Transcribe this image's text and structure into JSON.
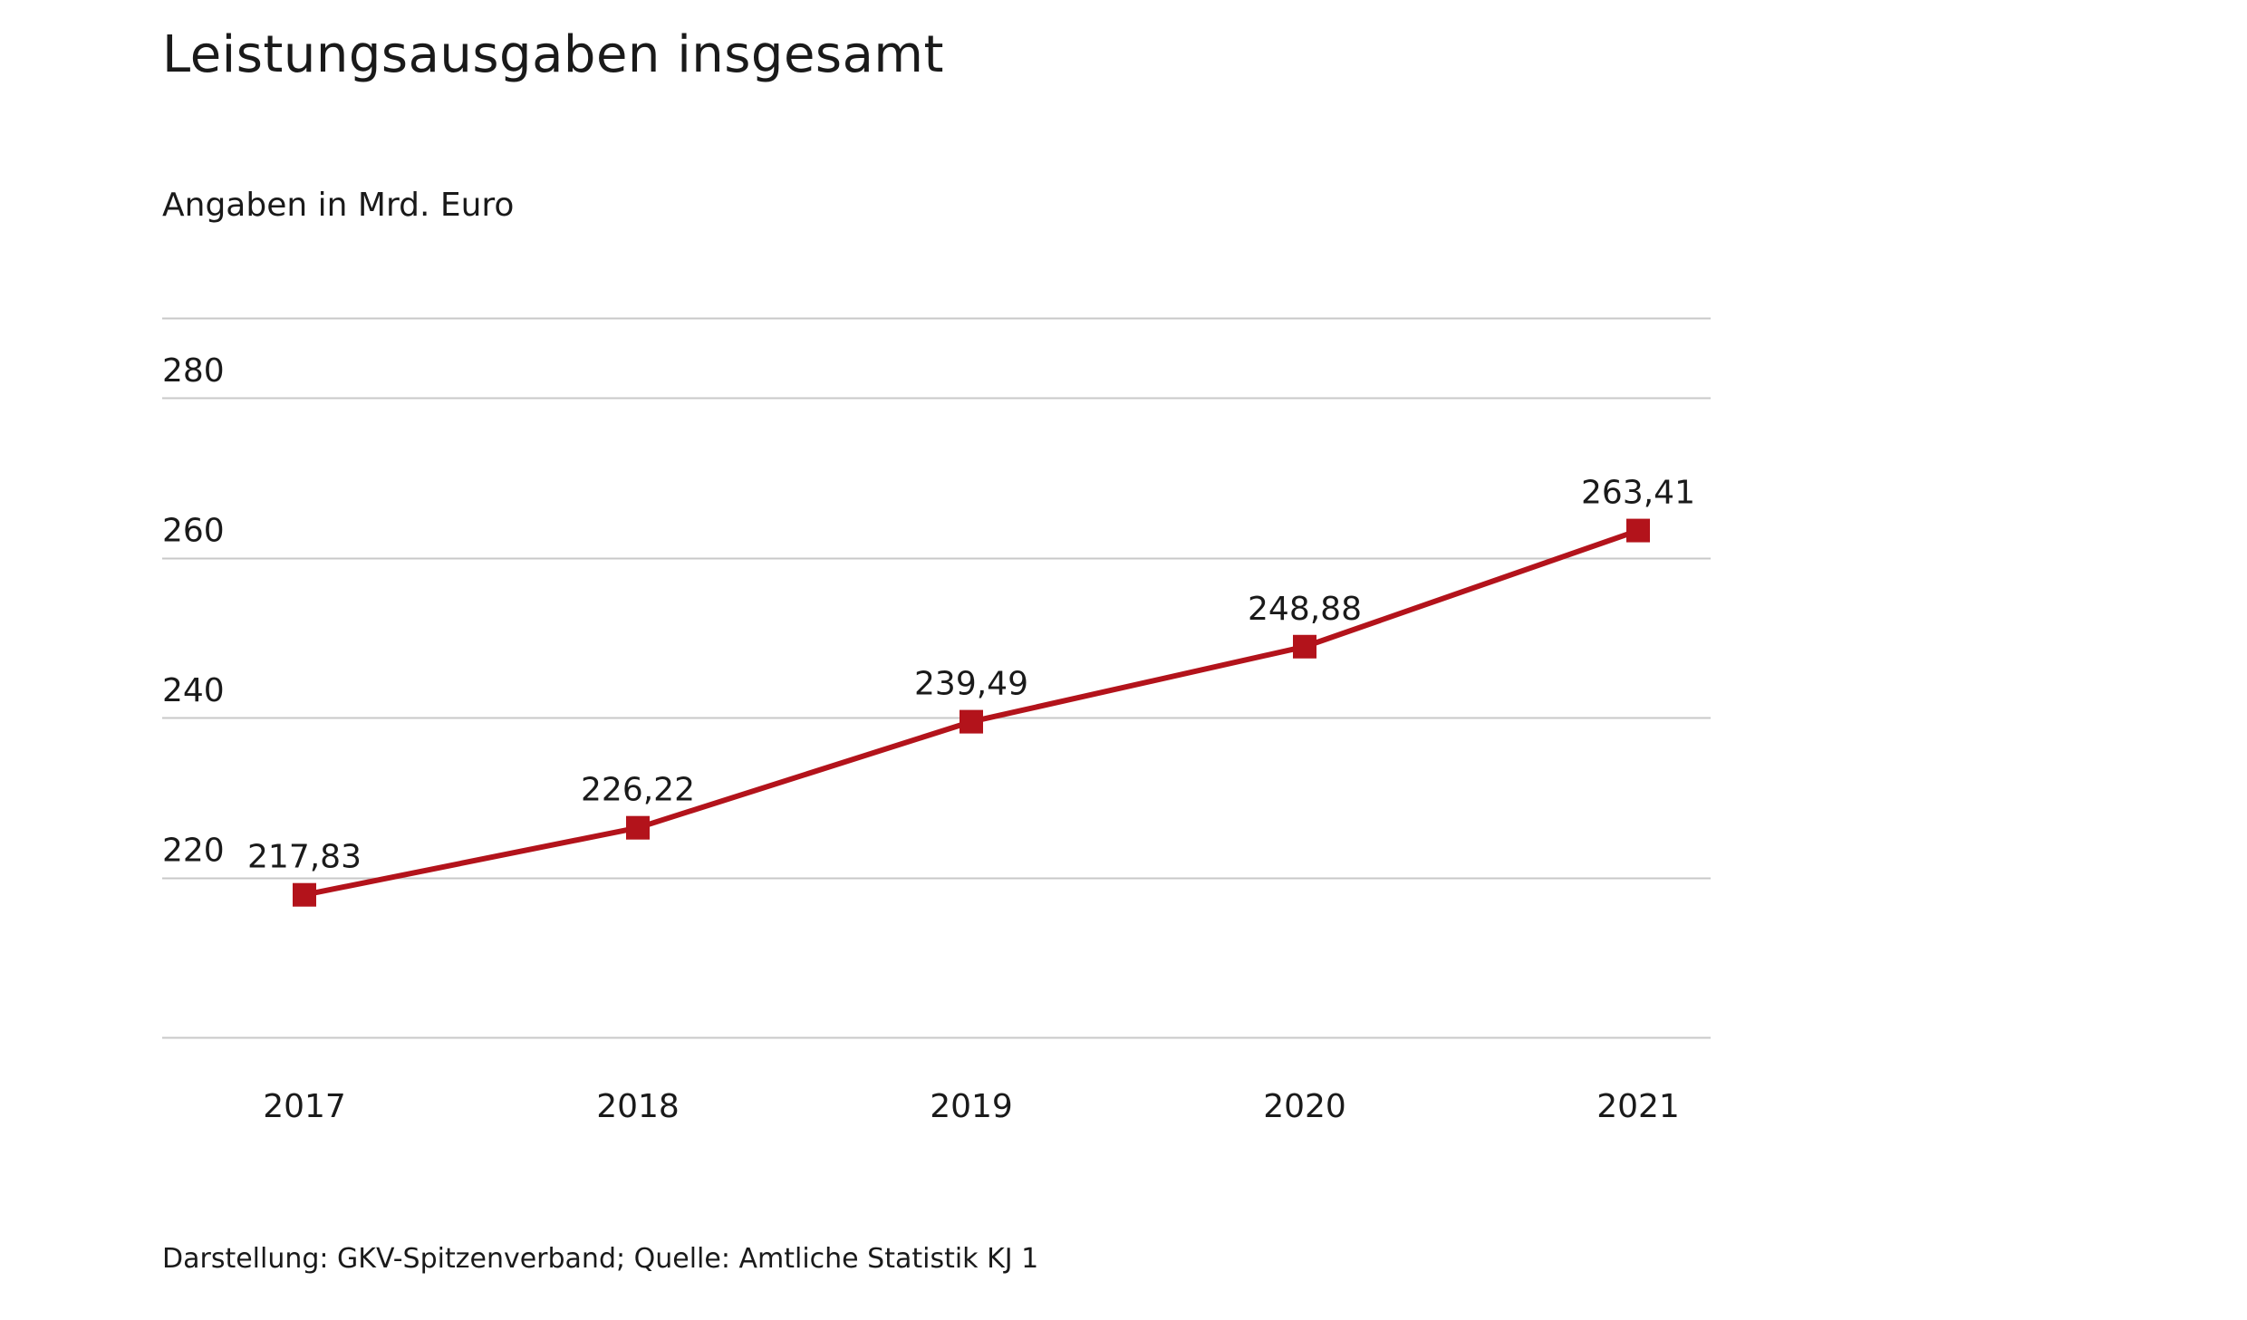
{
  "header": {
    "title": "Leistungsausgaben insgesamt",
    "subtitle": "Angaben in Mrd. Euro"
  },
  "footer": {
    "source": "Darstellung: GKV-Spitzenverband; Quelle: Amtliche Statistik KJ 1"
  },
  "colors": {
    "series": "#b3131b",
    "grid": "#c8c8c8",
    "text": "#1a1a1a"
  },
  "chart_data": {
    "type": "line",
    "title": "Leistungsausgaben insgesamt",
    "subtitle": "Angaben in Mrd. Euro",
    "categories": [
      "2017",
      "2018",
      "2019",
      "2020",
      "2021"
    ],
    "series": [
      {
        "values": [
          217.83,
          226.22,
          239.49,
          248.88,
          263.41
        ],
        "labels": [
          "217,83",
          "226,22",
          "239,49",
          "248,88",
          "263,41"
        ],
        "marker": "square"
      }
    ],
    "yticks": [
      220,
      240,
      260,
      280
    ],
    "ytick_labels": [
      "220",
      "240",
      "260",
      "280"
    ],
    "ylim": [
      200,
      290
    ],
    "grid": true,
    "legend": "none"
  }
}
